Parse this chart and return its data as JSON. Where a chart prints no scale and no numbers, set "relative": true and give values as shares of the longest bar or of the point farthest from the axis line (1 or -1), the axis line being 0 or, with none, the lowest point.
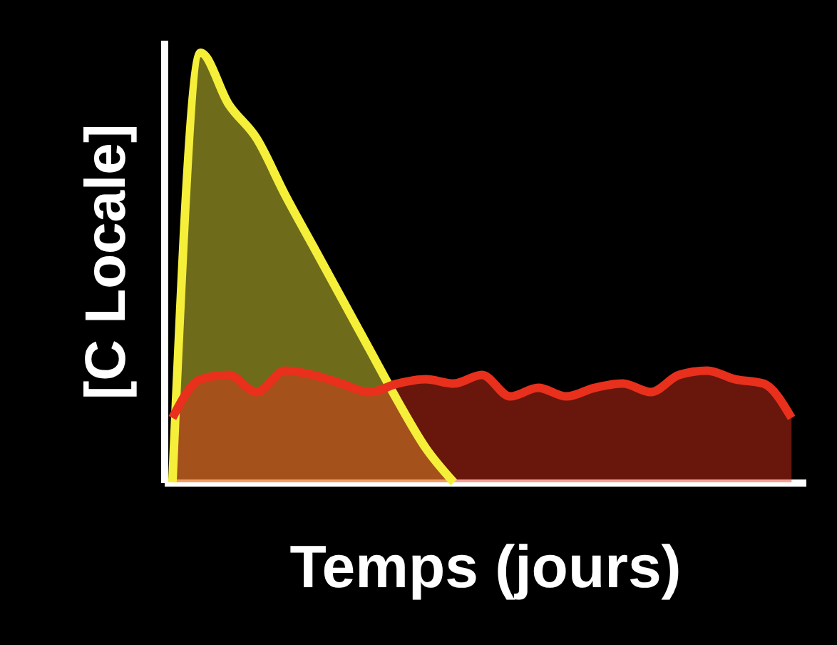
{
  "chart_data": {
    "type": "area",
    "relative": true,
    "xlabel": "Temps (jours)",
    "ylabel": "[C Locale]",
    "categories": [
      null,
      null,
      null,
      null,
      null,
      null,
      null,
      null,
      null,
      null,
      null,
      null,
      null,
      null,
      null,
      null,
      null,
      null,
      null,
      null,
      null,
      null,
      null
    ],
    "series": [
      {
        "color": "#f5ef3a",
        "values": [
          0,
          1.0,
          0.88,
          0.8,
          0.67,
          0.55,
          0.43,
          0.31,
          0.19,
          0.08,
          0,
          null,
          null,
          null,
          null,
          null,
          null,
          null,
          null,
          null,
          null,
          null,
          null
        ]
      },
      {
        "color": "#e8301c",
        "values": [
          0.15,
          0.24,
          0.25,
          0.21,
          0.26,
          0.25,
          0.23,
          0.21,
          0.23,
          0.24,
          0.23,
          0.25,
          0.2,
          0.22,
          0.2,
          0.22,
          0.23,
          0.21,
          0.25,
          0.26,
          0.24,
          0.23,
          0.15
        ]
      }
    ]
  }
}
